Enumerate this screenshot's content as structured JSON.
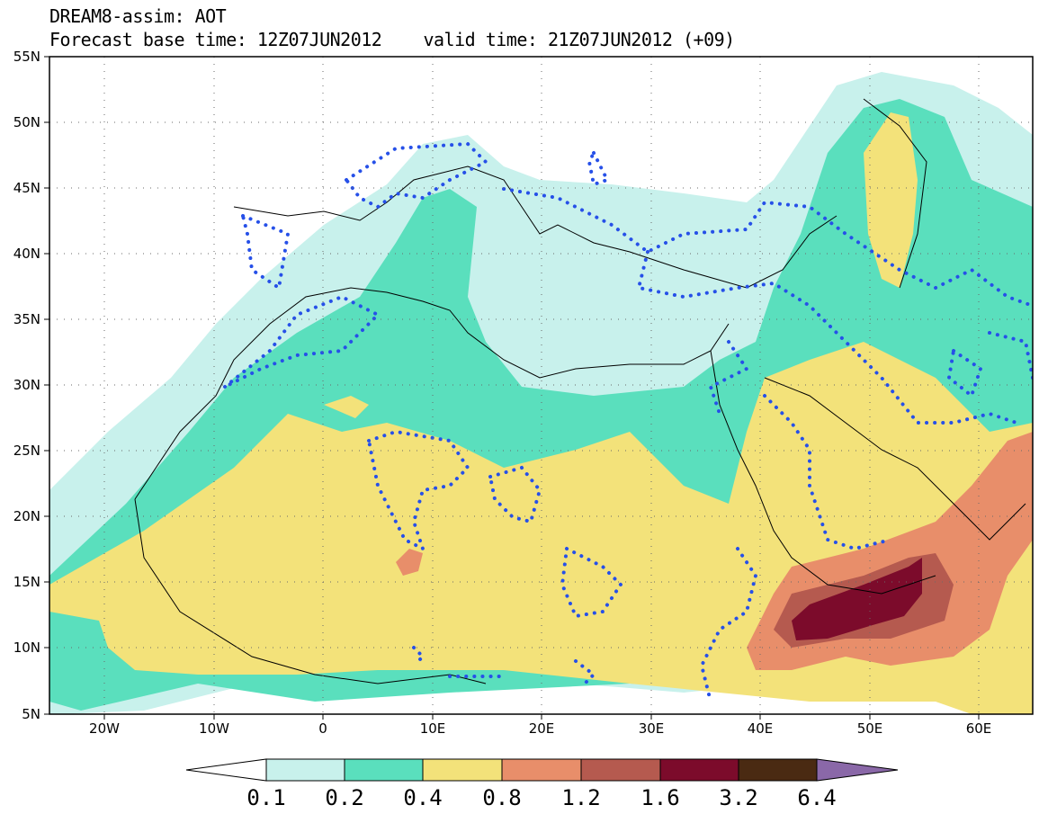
{
  "title": {
    "line1": "DREAM8-assim: AOT",
    "line2": "Forecast base time: 12Z07JUN2012    valid time: 21Z07JUN2012 (+09)"
  },
  "map": {
    "lat_labels": [
      "55N",
      "50N",
      "45N",
      "40N",
      "35N",
      "30N",
      "25N",
      "20N",
      "15N",
      "10N",
      "5N"
    ],
    "lon_labels": [
      "20W",
      "10W",
      "0",
      "10E",
      "20E",
      "30E",
      "40E",
      "50E",
      "60E"
    ]
  },
  "colorbar": {
    "labels": [
      "0.1",
      "0.2",
      "0.4",
      "0.8",
      "1.2",
      "1.6",
      "3.2",
      "6.4"
    ],
    "colors": [
      "#ffffff",
      "#c8f1ec",
      "#5adfbd",
      "#f3e27a",
      "#e88e6a",
      "#b55a4f",
      "#7c0b2b",
      "#4a2a12",
      "#8a68a8"
    ]
  },
  "overlay": "dotted-blue-contour",
  "overlay_color": "#2650e8"
}
